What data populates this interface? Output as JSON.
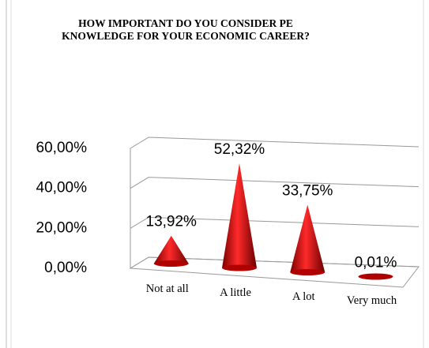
{
  "chart_data": {
    "type": "cone",
    "title": "HOW IMPORTANT DO YOU CONSIDER PE KNOWLEDGE FOR YOUR ECONOMIC CAREER?",
    "categories": [
      "Not at all",
      "A little",
      "A lot",
      "Very much"
    ],
    "values": [
      13.92,
      52.32,
      33.75,
      0.01
    ],
    "value_labels": [
      "13,92%",
      "52,32%",
      "33,75%",
      "0,01%"
    ],
    "color": "#d40000",
    "ylim": [
      0,
      60
    ],
    "yticks": [
      {
        "value": 0,
        "label": "0,00%"
      },
      {
        "value": 20,
        "label": "20,00%"
      },
      {
        "value": 40,
        "label": "40,00%"
      },
      {
        "value": 60,
        "label": "60,00%"
      }
    ],
    "grid": true
  }
}
